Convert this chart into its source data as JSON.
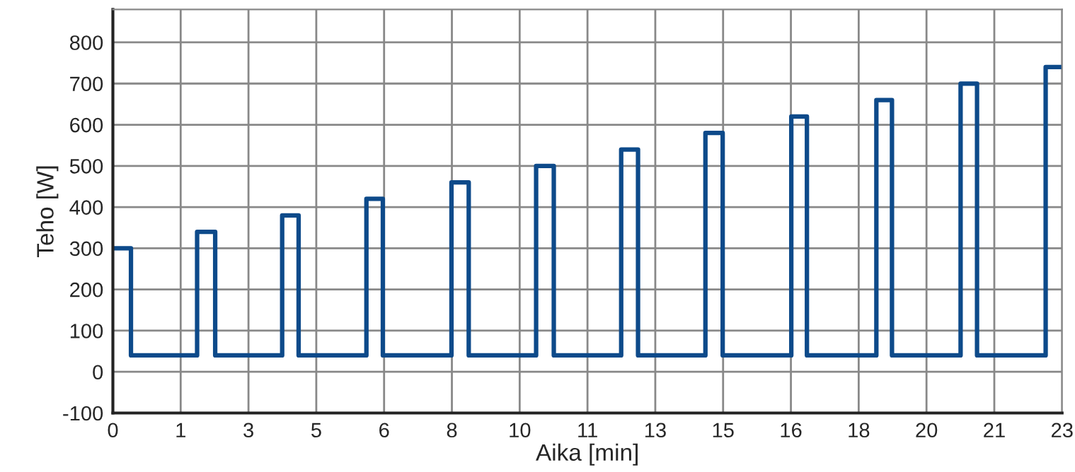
{
  "chart_data": {
    "type": "step",
    "xlabel": "Aika [min]",
    "ylabel": "Teho [W]",
    "series": [
      {
        "color": "#0d4a8a",
        "x": [
          -0.2,
          0.24,
          1.85,
          2.29,
          3.92,
          4.32,
          5.97,
          6.37,
          8.04,
          8.46,
          10.1,
          10.53,
          12.17,
          12.58,
          14.22,
          14.64,
          16.31,
          16.69,
          18.38,
          18.76,
          20.43,
          20.83,
          22.5,
          22.9
        ],
        "values": [
          300,
          40,
          340,
          40,
          380,
          40,
          420,
          40,
          460,
          40,
          500,
          40,
          540,
          40,
          580,
          40,
          620,
          40,
          660,
          40,
          700,
          40,
          740,
          740
        ]
      }
    ],
    "xlim": [
      -0.2,
      22.9
    ],
    "xticks": [
      {
        "value": -0.2,
        "label": "0"
      },
      {
        "value": 1.45,
        "label": "1"
      },
      {
        "value": 3.1,
        "label": "3"
      },
      {
        "value": 4.75,
        "label": "5"
      },
      {
        "value": 6.4,
        "label": "6"
      },
      {
        "value": 8.05,
        "label": "8"
      },
      {
        "value": 9.7,
        "label": "10"
      },
      {
        "value": 11.35,
        "label": "11"
      },
      13,
      {
        "value": 14.65,
        "label": "15"
      },
      {
        "value": 16.3,
        "label": "16"
      },
      {
        "value": 17.95,
        "label": "18"
      },
      {
        "value": 19.6,
        "label": "20"
      },
      {
        "value": 21.25,
        "label": "21"
      },
      {
        "value": 22.9,
        "label": "23"
      }
    ],
    "ylim": [
      -100,
      880
    ],
    "yticks": [
      -100,
      0,
      100,
      200,
      300,
      400,
      500,
      600,
      700,
      800
    ],
    "grid": true,
    "marker": "none",
    "line_style": "solid"
  }
}
